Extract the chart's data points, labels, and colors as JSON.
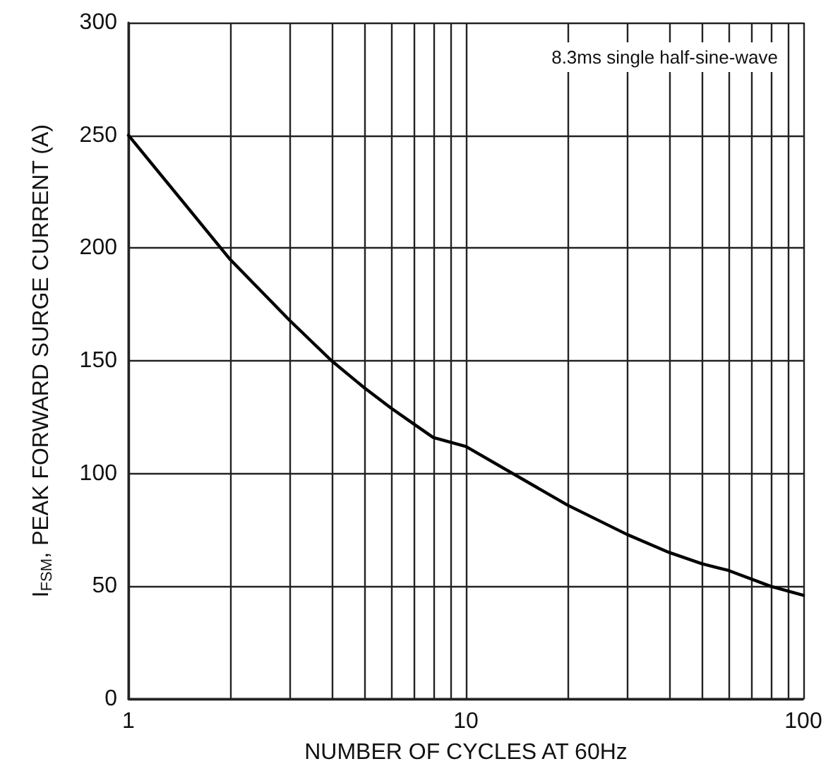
{
  "chart_data": {
    "type": "line",
    "xlabel": "NUMBER OF CYCLES AT 60Hz",
    "ylabel": "I$_{FSM}$, PEAK FORWARD SURGE CURRENT (A)",
    "annotations": [
      "8.3ms single half-sine-wave"
    ],
    "x": [
      1,
      2,
      3,
      4,
      5,
      6,
      7,
      8,
      10,
      20,
      30,
      40,
      50,
      60,
      80,
      100
    ],
    "series": [
      {
        "color": "#000000",
        "values": [
          250,
          195,
          168,
          150,
          138,
          129,
          122,
          116,
          112,
          86,
          73,
          65,
          60,
          57,
          50,
          46
        ]
      }
    ],
    "log": "x",
    "xlim": [
      1,
      100
    ],
    "xticks": [
      1,
      {
        "value": 2,
        "label": null
      },
      {
        "value": 3,
        "label": null
      },
      {
        "value": 4,
        "label": null
      },
      {
        "value": 5,
        "label": null
      },
      {
        "value": 6,
        "label": null
      },
      {
        "value": 7,
        "label": null
      },
      {
        "value": 8,
        "label": null
      },
      {
        "value": 9,
        "label": null
      },
      10,
      {
        "value": 20,
        "label": null
      },
      {
        "value": 30,
        "label": null
      },
      {
        "value": 40,
        "label": null
      },
      {
        "value": 50,
        "label": null
      },
      {
        "value": 60,
        "label": null
      },
      {
        "value": 70,
        "label": null
      },
      {
        "value": 80,
        "label": null
      },
      {
        "value": 90,
        "label": null
      },
      100
    ],
    "ylim": [
      0,
      300
    ],
    "yticks": [
      0,
      50,
      100,
      150,
      200,
      250,
      300
    ],
    "grid": true,
    "marker": "none",
    "line_style": "solid"
  }
}
